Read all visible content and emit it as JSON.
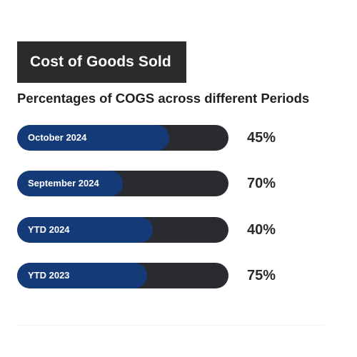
{
  "header": {
    "title": "Cost of Goods Sold",
    "subtitle": "Percentages of COGS across different Periods"
  },
  "colors": {
    "title_bg": "#2b2b2b",
    "track": "#2a2b30",
    "fill": "#143a78",
    "label_text": "#ffffff"
  },
  "chart_data": {
    "type": "bar",
    "orientation": "horizontal",
    "title": "Cost of Goods Sold",
    "subtitle": "Percentages of COGS across different Periods",
    "categories": [
      "October 2024",
      "September 2024",
      "YTD 2024",
      "YTD 2023"
    ],
    "values": [
      45,
      70,
      40,
      75
    ],
    "value_labels": [
      "45%",
      "70%",
      "40%",
      "75%"
    ],
    "xlim": [
      0,
      100
    ],
    "unit": "%",
    "grid": false,
    "legend": "none"
  }
}
